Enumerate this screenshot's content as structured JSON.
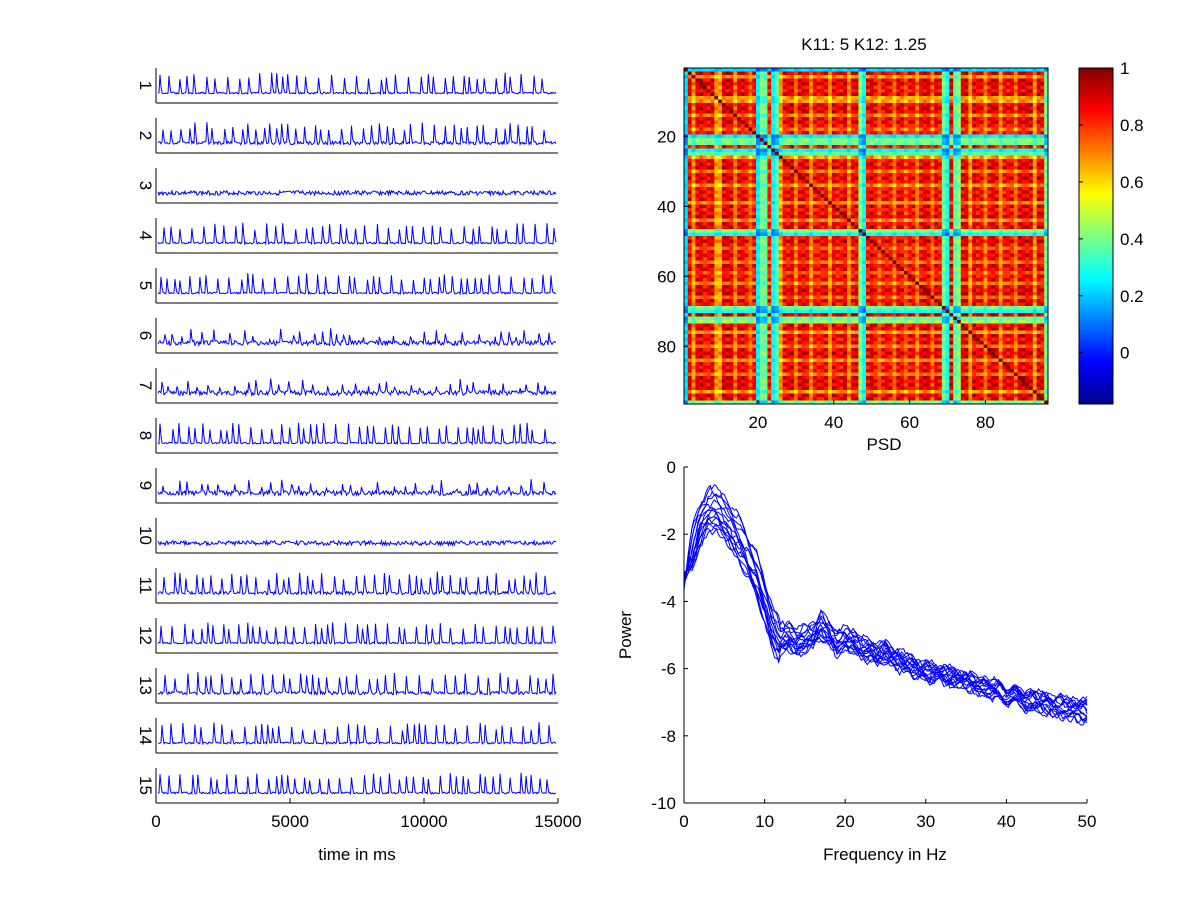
{
  "figure": {
    "traces_panel": {
      "chart_data": {
        "type": "line",
        "xlabel": "time in ms",
        "xlim": [
          0,
          15000
        ],
        "xticks": [
          0,
          5000,
          10000,
          15000
        ],
        "channels": [
          {
            "label": "1",
            "style": "spiking",
            "seed": 1
          },
          {
            "label": "2",
            "style": "spiking-noisy",
            "seed": 2
          },
          {
            "label": "3",
            "style": "noise",
            "seed": 3
          },
          {
            "label": "4",
            "style": "spiking",
            "seed": 4
          },
          {
            "label": "5",
            "style": "spiking",
            "seed": 5
          },
          {
            "label": "6",
            "style": "mixed",
            "seed": 6
          },
          {
            "label": "7",
            "style": "mixed",
            "seed": 7
          },
          {
            "label": "8",
            "style": "spiking",
            "seed": 8
          },
          {
            "label": "9",
            "style": "mixed",
            "seed": 9
          },
          {
            "label": "10",
            "style": "noise",
            "seed": 10
          },
          {
            "label": "11",
            "style": "spiking-noisy",
            "seed": 11
          },
          {
            "label": "12",
            "style": "spiking",
            "seed": 12
          },
          {
            "label": "13",
            "style": "spiking-noisy",
            "seed": 13
          },
          {
            "label": "14",
            "style": "spiking",
            "seed": 14
          },
          {
            "label": "15",
            "style": "spiking",
            "seed": 15
          }
        ],
        "line_color": "#0000ff"
      }
    },
    "matrix_panel": {
      "chart_data": {
        "type": "heatmap",
        "title": "K11: 5 K12: 1.25",
        "xlabel": "PSD",
        "size": 96,
        "xticks": [
          20,
          40,
          60,
          80
        ],
        "yticks": [
          20,
          40,
          60,
          80
        ],
        "clim": [
          -0.18,
          1
        ],
        "colorbar_ticks": [
          0,
          0.2,
          0.4,
          0.6,
          0.8,
          1
        ],
        "low_columns": [
          1,
          20,
          21,
          22,
          24,
          25,
          47,
          48,
          69,
          70,
          72,
          73,
          96
        ],
        "mid_columns": [
          3,
          9,
          10,
          14,
          18,
          26,
          30,
          34,
          39,
          44,
          52,
          56,
          59,
          62,
          66,
          76,
          80,
          84,
          88,
          93
        ]
      }
    },
    "psd_panel": {
      "chart_data": {
        "type": "line",
        "xlabel": "Frequency in Hz",
        "ylabel": "Power",
        "xlim": [
          0,
          50
        ],
        "ylim": [
          -10,
          0
        ],
        "xticks": [
          0,
          10,
          20,
          30,
          40,
          50
        ],
        "yticks": [
          0,
          -2,
          -4,
          -6,
          -8,
          -10
        ],
        "series_count": 15,
        "line_color": "#0000ff",
        "mean_curve": {
          "x": [
            0,
            1,
            2,
            3,
            4,
            5,
            6,
            7,
            8,
            9,
            10,
            11,
            12,
            13,
            14,
            15,
            16,
            17,
            18,
            19,
            20,
            21,
            22,
            23,
            24,
            25,
            26,
            27,
            28,
            29,
            30,
            32,
            34,
            36,
            38,
            40,
            42,
            44,
            46,
            48,
            50
          ],
          "y": [
            -3.4,
            -2.3,
            -1.5,
            -1.05,
            -1.05,
            -1.3,
            -1.65,
            -2.0,
            -2.5,
            -3.0,
            -3.8,
            -4.6,
            -5.0,
            -4.9,
            -5.1,
            -5.0,
            -4.9,
            -4.6,
            -4.85,
            -5.15,
            -5.0,
            -5.1,
            -5.3,
            -5.35,
            -5.5,
            -5.4,
            -5.6,
            -5.7,
            -5.8,
            -5.95,
            -6.0,
            -6.1,
            -6.25,
            -6.4,
            -6.55,
            -6.7,
            -6.85,
            -6.95,
            -7.05,
            -7.15,
            -7.2
          ]
        }
      }
    }
  }
}
